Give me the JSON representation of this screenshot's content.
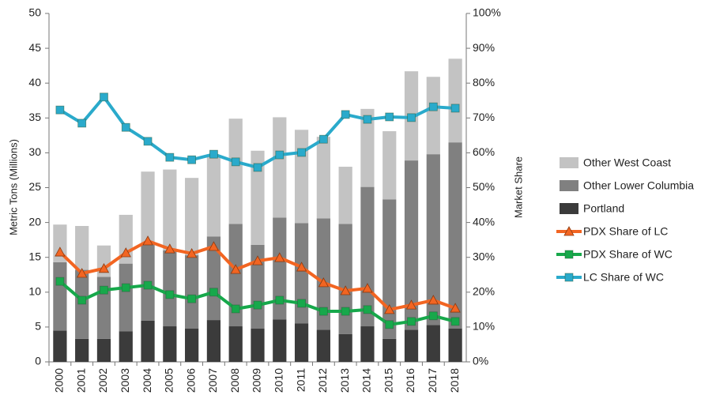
{
  "chart_data": {
    "type": "bar",
    "y_label": "Metric Tons (Millions)",
    "y2_label": "Market Share",
    "categories": [
      "2000",
      "2001",
      "2002",
      "2003",
      "2004",
      "2005",
      "2006",
      "2007",
      "2008",
      "2009",
      "2010",
      "2011",
      "2012",
      "2013",
      "2014",
      "2015",
      "2016",
      "2017",
      "2018"
    ],
    "stacked": true,
    "series": [
      {
        "name": "Portland",
        "type": "bar",
        "color": "#3b3b3b",
        "values": [
          4.5,
          3.3,
          3.3,
          4.4,
          5.9,
          5.1,
          4.8,
          6.0,
          5.1,
          4.8,
          6.1,
          5.5,
          4.6,
          4.0,
          5.1,
          3.3,
          4.6,
          5.3,
          4.8
        ]
      },
      {
        "name": "Other Lower Columbia",
        "type": "bar",
        "color": "#808080",
        "values": [
          9.8,
          9.9,
          8.9,
          9.7,
          11.2,
          10.9,
          10.5,
          12.0,
          14.7,
          12.0,
          14.6,
          14.4,
          16.0,
          15.8,
          20.0,
          20.0,
          24.3,
          24.5,
          26.7
        ]
      },
      {
        "name": "Other West Coast",
        "type": "bar",
        "color": "#c3c3c3",
        "values": [
          5.4,
          6.3,
          4.5,
          7.0,
          10.2,
          11.6,
          11.1,
          11.6,
          15.1,
          13.5,
          14.4,
          13.4,
          11.7,
          8.2,
          11.2,
          9.8,
          12.8,
          11.1,
          12.0
        ]
      },
      {
        "name": "PDX Share of LC",
        "type": "line",
        "axis": "y2",
        "color": "#f26522",
        "marker": "triangle",
        "values": [
          31.5,
          25.4,
          26.8,
          31.3,
          34.7,
          32.4,
          31.1,
          33.1,
          26.5,
          29.0,
          29.9,
          27.2,
          22.7,
          20.4,
          21.1,
          15.0,
          16.3,
          17.7,
          15.4
        ]
      },
      {
        "name": "PDX Share of WC",
        "type": "line",
        "axis": "y2",
        "color": "#17a84b",
        "marker": "square",
        "values": [
          23.1,
          17.7,
          20.6,
          21.3,
          22.0,
          19.3,
          18.1,
          20.0,
          15.2,
          16.3,
          17.7,
          16.8,
          14.5,
          14.5,
          15.0,
          10.7,
          11.6,
          13.2,
          11.6
        ]
      },
      {
        "name": "LC Share of WC",
        "type": "line",
        "axis": "y2",
        "color": "#2aaacb",
        "marker": "square",
        "values": [
          72.3,
          68.5,
          76.0,
          67.3,
          63.3,
          58.7,
          58.0,
          59.6,
          57.4,
          55.8,
          59.4,
          60.1,
          63.9,
          71.0,
          69.6,
          70.3,
          70.1,
          73.2,
          72.8
        ]
      }
    ],
    "ylim": [
      0,
      50
    ],
    "yticks": [
      0,
      5,
      10,
      15,
      20,
      25,
      30,
      35,
      40,
      45,
      50
    ],
    "y2lim": [
      0,
      100
    ],
    "y2ticks": [
      {
        "value": 0,
        "label": "0%"
      },
      {
        "value": 10,
        "label": "10%"
      },
      {
        "value": 20,
        "label": "20%"
      },
      {
        "value": 30,
        "label": "30%"
      },
      {
        "value": 40,
        "label": "40%"
      },
      {
        "value": 50,
        "label": "50%"
      },
      {
        "value": 60,
        "label": "60%"
      },
      {
        "value": 70,
        "label": "70%"
      },
      {
        "value": 80,
        "label": "80%"
      },
      {
        "value": 90,
        "label": "90%"
      },
      {
        "value": 100,
        "label": "100%"
      }
    ],
    "grid": false,
    "legend": "right"
  }
}
